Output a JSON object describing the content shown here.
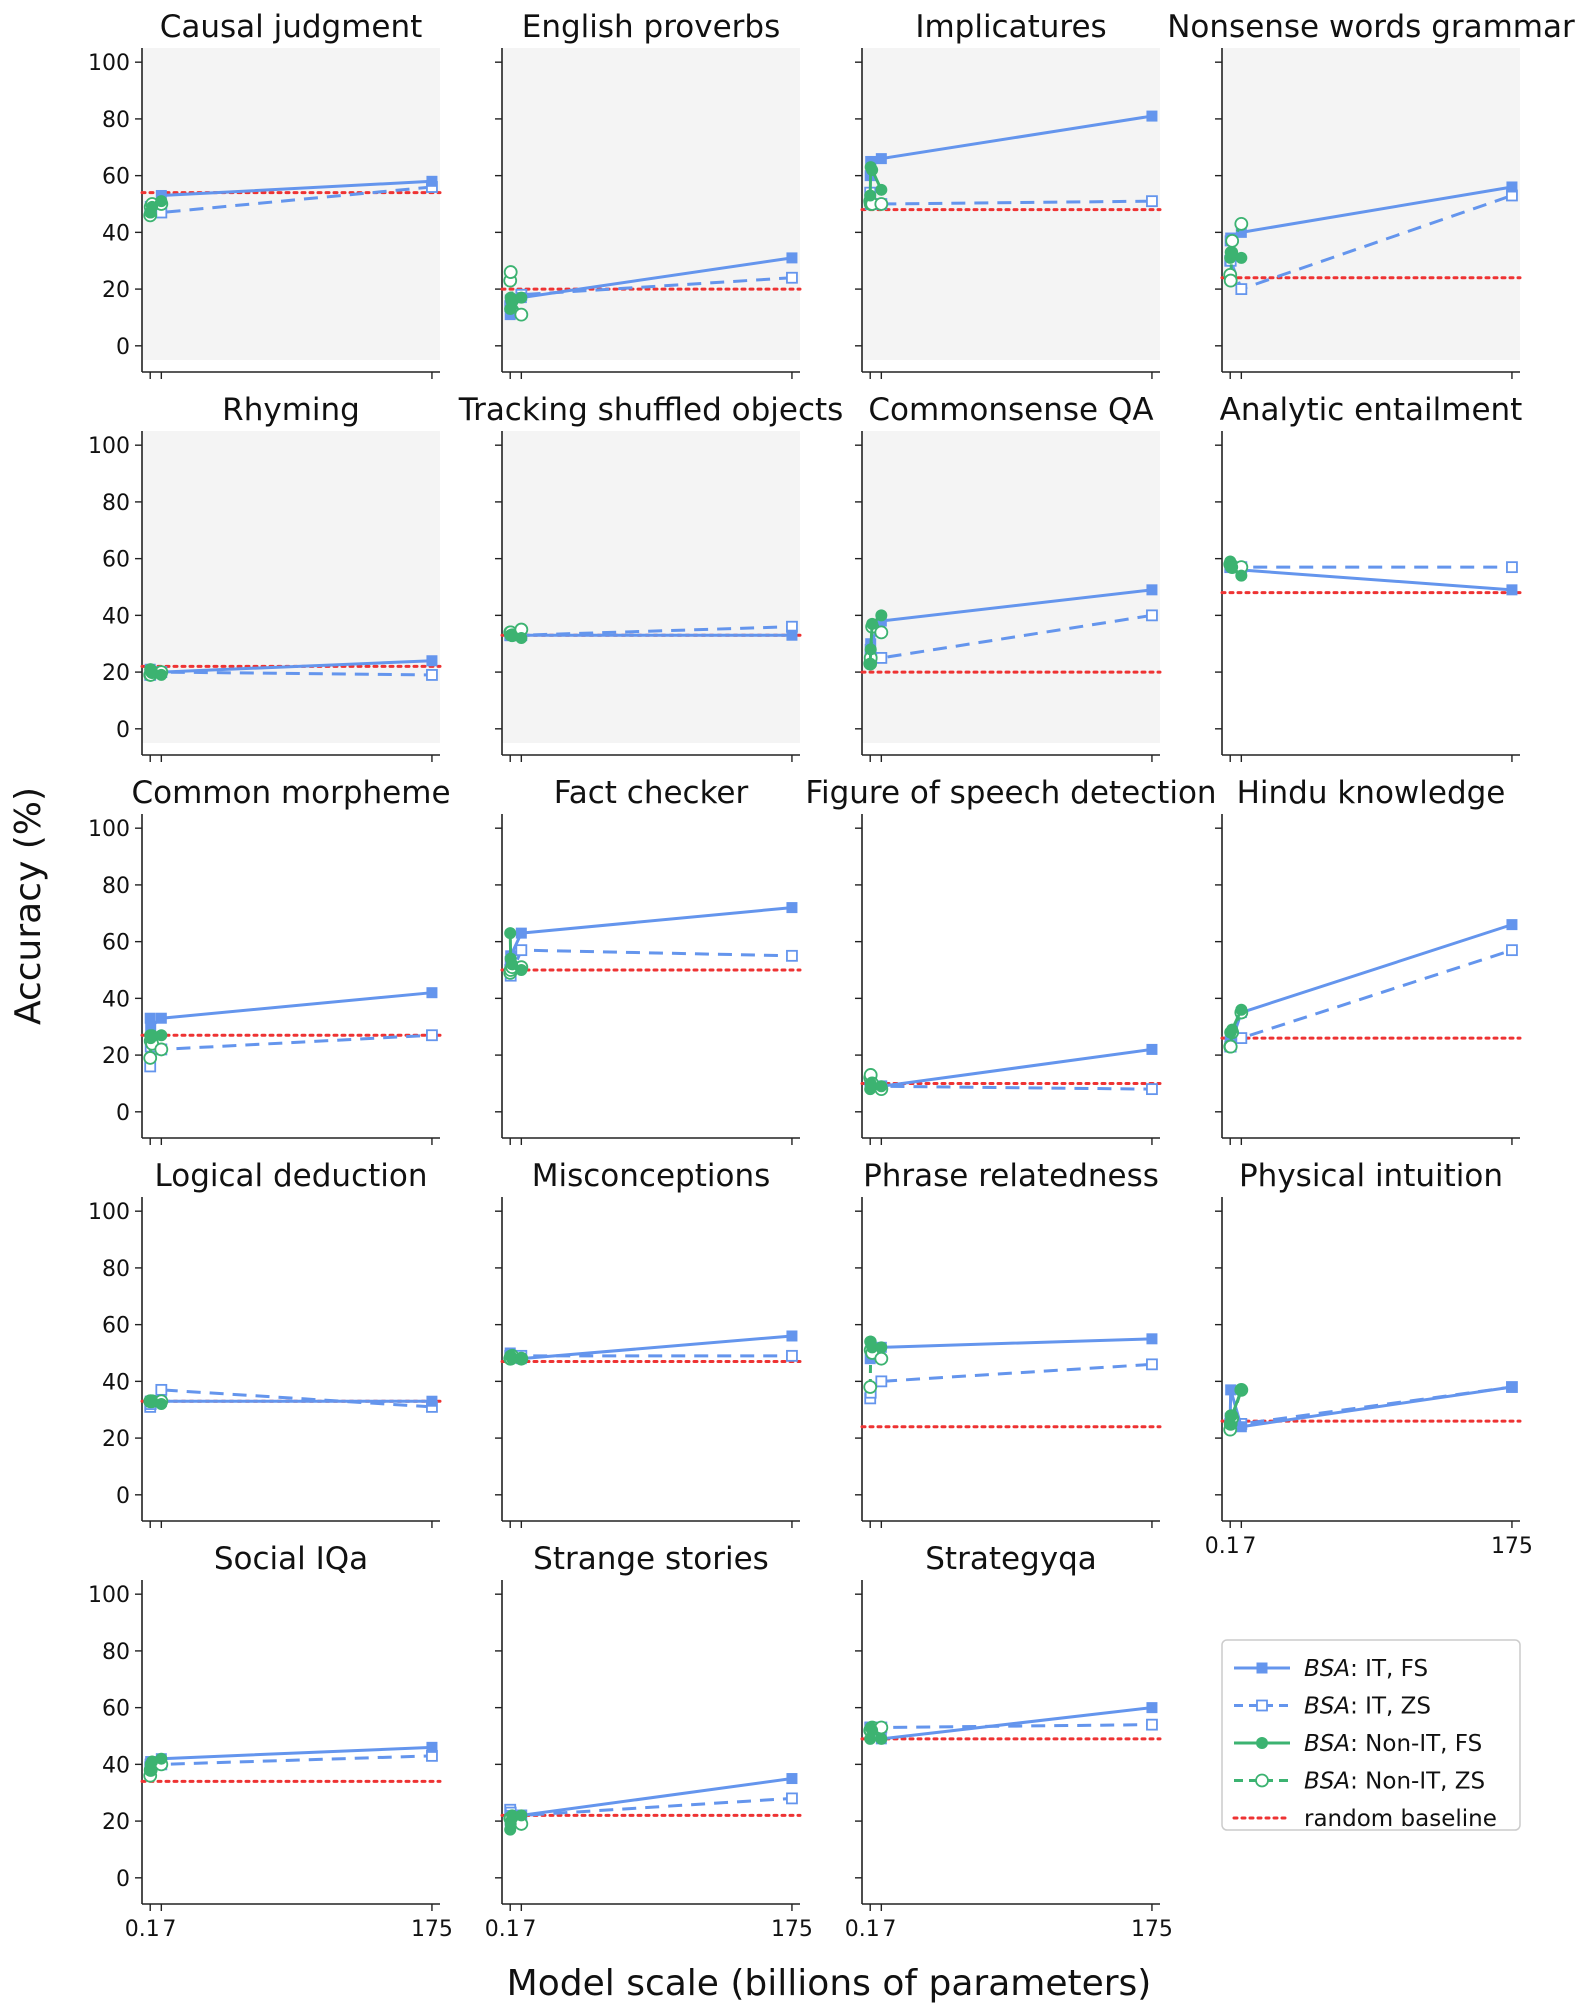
{
  "chart_data": {
    "type": "line",
    "ylabel": "Accuracy (%)",
    "xlabel": "Model scale (billions of parameters)",
    "ylim": [
      -5,
      105
    ],
    "yticks": [
      0,
      20,
      40,
      60,
      80,
      100
    ],
    "xlim": [
      -5,
      180
    ],
    "xticks": [
      0.1,
      7,
      175
    ],
    "xtick_labels": [
      "0.1",
      "7",
      "175"
    ],
    "colors": {
      "blue": "#6495ED",
      "green": "#3CB371",
      "red": "#EE3333",
      "panel_shaded": "#F4F4F4"
    },
    "legend": [
      {
        "italic": "BSA",
        "rest": ": IT, FS",
        "style": "solid",
        "marker": "square-filled",
        "color": "#6495ED"
      },
      {
        "italic": "BSA",
        "rest": ": IT, ZS",
        "style": "dashed",
        "marker": "square-open",
        "color": "#6495ED"
      },
      {
        "italic": "BSA",
        "rest": ": Non-IT, FS",
        "style": "solid",
        "marker": "circle-filled",
        "color": "#3CB371"
      },
      {
        "italic": "BSA",
        "rest": ": Non-IT, ZS",
        "style": "dashed",
        "marker": "circle-open",
        "color": "#3CB371"
      },
      {
        "italic": "",
        "rest": "random baseline",
        "style": "dotted",
        "marker": "none",
        "color": "#EE3333"
      }
    ],
    "panels": [
      {
        "title": "Causal judgment",
        "shaded": true,
        "baseline": 54,
        "it_fs": {
          "x": [
            0.1,
            0.4,
            7,
            175
          ],
          "y": [
            47,
            48,
            53,
            58
          ]
        },
        "it_zs": {
          "x": [
            0.1,
            0.4,
            7,
            175
          ],
          "y": [
            47,
            49,
            47,
            56
          ]
        },
        "nonit_fs": {
          "x": [
            0.1,
            0.4,
            1.3,
            7
          ],
          "y": [
            47,
            47,
            49,
            51
          ]
        },
        "nonit_zs": {
          "x": [
            0.1,
            0.4,
            1.3,
            7
          ],
          "y": [
            46,
            49,
            50,
            50
          ]
        }
      },
      {
        "title": "English proverbs",
        "shaded": true,
        "baseline": 20,
        "it_fs": {
          "x": [
            0.1,
            0.4,
            7,
            175
          ],
          "y": [
            11,
            15,
            17,
            31
          ]
        },
        "it_zs": {
          "x": [
            0.1,
            0.4,
            7,
            175
          ],
          "y": [
            14,
            16,
            18,
            24
          ]
        },
        "nonit_fs": {
          "x": [
            0.1,
            0.4,
            1.3,
            7
          ],
          "y": [
            13,
            17,
            16,
            17
          ]
        },
        "nonit_zs": {
          "x": [
            0.1,
            0.4,
            1.3,
            7
          ],
          "y": [
            23,
            26,
            16,
            11
          ]
        }
      },
      {
        "title": "Implicatures",
        "shaded": true,
        "baseline": 48,
        "it_fs": {
          "x": [
            0.1,
            0.4,
            7,
            175
          ],
          "y": [
            60,
            65,
            66,
            81
          ]
        },
        "it_zs": {
          "x": [
            0.1,
            0.4,
            7,
            175
          ],
          "y": [
            54,
            50,
            50,
            51
          ]
        },
        "nonit_fs": {
          "x": [
            0.1,
            0.4,
            1.3,
            7
          ],
          "y": [
            53,
            63,
            62,
            55
          ]
        },
        "nonit_zs": {
          "x": [
            0.1,
            0.4,
            1.3,
            7
          ],
          "y": [
            51,
            50,
            50,
            50
          ]
        }
      },
      {
        "title": "Nonsense words grammar",
        "shaded": true,
        "baseline": 24,
        "it_fs": {
          "x": [
            0.1,
            0.4,
            7,
            175
          ],
          "y": [
            37,
            38,
            40,
            56
          ]
        },
        "it_zs": {
          "x": [
            0.1,
            0.4,
            7,
            175
          ],
          "y": [
            30,
            30,
            20,
            53
          ]
        },
        "nonit_fs": {
          "x": [
            0.1,
            0.4,
            1.3,
            7
          ],
          "y": [
            31,
            33,
            33,
            31
          ]
        },
        "nonit_zs": {
          "x": [
            0.1,
            0.4,
            1.3,
            7
          ],
          "y": [
            25,
            23,
            37,
            43
          ]
        }
      },
      {
        "title": "Rhyming",
        "shaded": true,
        "baseline": 22,
        "it_fs": {
          "x": [
            0.1,
            0.4,
            7,
            175
          ],
          "y": [
            21,
            20,
            20,
            24
          ]
        },
        "it_zs": {
          "x": [
            0.1,
            0.4,
            7,
            175
          ],
          "y": [
            19,
            20,
            20,
            19
          ]
        },
        "nonit_fs": {
          "x": [
            0.1,
            0.4,
            1.3,
            7
          ],
          "y": [
            21,
            21,
            20,
            19
          ]
        },
        "nonit_zs": {
          "x": [
            0.1,
            0.4,
            1.3,
            7
          ],
          "y": [
            19,
            19,
            20,
            20
          ]
        }
      },
      {
        "title": "Tracking shuffled objects",
        "shaded": true,
        "baseline": 33,
        "it_fs": {
          "x": [
            0.1,
            0.4,
            7,
            175
          ],
          "y": [
            33,
            33,
            33,
            33
          ]
        },
        "it_zs": {
          "x": [
            0.1,
            0.4,
            7,
            175
          ],
          "y": [
            33,
            33,
            33,
            36
          ]
        },
        "nonit_fs": {
          "x": [
            0.1,
            0.4,
            1.3,
            7
          ],
          "y": [
            33,
            33,
            33,
            32
          ]
        },
        "nonit_zs": {
          "x": [
            0.1,
            0.4,
            1.3,
            7
          ],
          "y": [
            34,
            34,
            33,
            35
          ]
        }
      },
      {
        "title": "Commonsense QA",
        "shaded": true,
        "baseline": 20,
        "it_fs": {
          "x": [
            0.1,
            0.4,
            7,
            175
          ],
          "y": [
            28,
            30,
            38,
            49
          ]
        },
        "it_zs": {
          "x": [
            0.1,
            0.4,
            7,
            175
          ],
          "y": [
            24,
            26,
            25,
            40
          ]
        },
        "nonit_fs": {
          "x": [
            0.1,
            0.4,
            1.3,
            7
          ],
          "y": [
            23,
            28,
            37,
            40
          ]
        },
        "nonit_zs": {
          "x": [
            0.1,
            0.4,
            1.3,
            7
          ],
          "y": [
            23,
            25,
            36,
            34
          ]
        }
      },
      {
        "title": "Analytic entailment",
        "shaded": false,
        "baseline": 48,
        "it_fs": {
          "x": [
            0.1,
            0.4,
            7,
            175
          ],
          "y": [
            57,
            57,
            56,
            49
          ]
        },
        "it_zs": {
          "x": [
            0.1,
            0.4,
            7,
            175
          ],
          "y": [
            57,
            57,
            57,
            57
          ]
        },
        "nonit_fs": {
          "x": [
            0.1,
            0.4,
            1.3,
            7
          ],
          "y": [
            59,
            57,
            57,
            54
          ]
        },
        "nonit_zs": {
          "x": [
            0.1,
            0.4,
            1.3,
            7
          ],
          "y": [
            58,
            58,
            57,
            57
          ]
        }
      },
      {
        "title": "Common morpheme",
        "shaded": false,
        "baseline": 27,
        "it_fs": {
          "x": [
            0.1,
            0.4,
            7,
            175
          ],
          "y": [
            33,
            30,
            33,
            42
          ]
        },
        "it_zs": {
          "x": [
            0.1,
            0.4,
            7,
            175
          ],
          "y": [
            16,
            23,
            22,
            27
          ]
        },
        "nonit_fs": {
          "x": [
            0.1,
            0.4,
            1.3,
            7
          ],
          "y": [
            27,
            26,
            27,
            27
          ]
        },
        "nonit_zs": {
          "x": [
            0.1,
            0.4,
            1.3,
            7
          ],
          "y": [
            19,
            25,
            24,
            22
          ]
        }
      },
      {
        "title": "Fact checker",
        "shaded": false,
        "baseline": 50,
        "it_fs": {
          "x": [
            0.1,
            0.4,
            7,
            175
          ],
          "y": [
            53,
            55,
            63,
            72
          ]
        },
        "it_zs": {
          "x": [
            0.1,
            0.4,
            7,
            175
          ],
          "y": [
            50,
            48,
            57,
            55
          ]
        },
        "nonit_fs": {
          "x": [
            0.1,
            0.4,
            1.3,
            7
          ],
          "y": [
            63,
            54,
            52,
            50
          ]
        },
        "nonit_zs": {
          "x": [
            0.1,
            0.4,
            1.3,
            7
          ],
          "y": [
            49,
            50,
            51,
            51
          ]
        }
      },
      {
        "title": "Figure of speech detection",
        "shaded": false,
        "baseline": 10,
        "it_fs": {
          "x": [
            0.1,
            0.4,
            7,
            175
          ],
          "y": [
            10,
            9,
            9,
            22
          ]
        },
        "it_zs": {
          "x": [
            0.1,
            0.4,
            7,
            175
          ],
          "y": [
            11,
            10,
            9,
            8
          ]
        },
        "nonit_fs": {
          "x": [
            0.1,
            0.4,
            1.3,
            7
          ],
          "y": [
            8,
            10,
            9,
            9
          ]
        },
        "nonit_zs": {
          "x": [
            0.1,
            0.4,
            1.3,
            7
          ],
          "y": [
            12,
            13,
            10,
            8
          ]
        }
      },
      {
        "title": "Hindu knowledge",
        "shaded": false,
        "baseline": 26,
        "it_fs": {
          "x": [
            0.1,
            0.4,
            7,
            175
          ],
          "y": [
            25,
            24,
            35,
            66
          ]
        },
        "it_zs": {
          "x": [
            0.1,
            0.4,
            7,
            175
          ],
          "y": [
            23,
            23,
            26,
            57
          ]
        },
        "nonit_fs": {
          "x": [
            0.1,
            0.4,
            1.3,
            7
          ],
          "y": [
            28,
            28,
            29,
            36
          ]
        },
        "nonit_zs": {
          "x": [
            0.1,
            0.4,
            1.3,
            7
          ],
          "y": [
            23,
            23,
            28,
            35
          ]
        }
      },
      {
        "title": "Logical deduction",
        "shaded": false,
        "baseline": 33,
        "it_fs": {
          "x": [
            0.1,
            0.4,
            7,
            175
          ],
          "y": [
            33,
            33,
            33,
            33
          ]
        },
        "it_zs": {
          "x": [
            0.1,
            0.4,
            7,
            175
          ],
          "y": [
            31,
            32,
            37,
            31
          ]
        },
        "nonit_fs": {
          "x": [
            0.1,
            0.4,
            1.3,
            7
          ],
          "y": [
            33,
            33,
            33,
            32
          ]
        },
        "nonit_zs": {
          "x": [
            0.1,
            0.4,
            1.3,
            7
          ],
          "y": [
            33,
            33,
            33,
            33
          ]
        }
      },
      {
        "title": "Misconceptions",
        "shaded": false,
        "baseline": 47,
        "it_fs": {
          "x": [
            0.1,
            0.4,
            7,
            175
          ],
          "y": [
            50,
            49,
            48,
            56
          ]
        },
        "it_zs": {
          "x": [
            0.1,
            0.4,
            7,
            175
          ],
          "y": [
            49,
            49,
            49,
            49
          ]
        },
        "nonit_fs": {
          "x": [
            0.1,
            0.4,
            1.3,
            7
          ],
          "y": [
            49,
            49,
            48,
            48
          ]
        },
        "nonit_zs": {
          "x": [
            0.1,
            0.4,
            1.3,
            7
          ],
          "y": [
            48,
            48,
            49,
            48
          ]
        }
      },
      {
        "title": "Phrase relatedness",
        "shaded": false,
        "baseline": 24,
        "it_fs": {
          "x": [
            0.1,
            0.4,
            7,
            175
          ],
          "y": [
            48,
            51,
            52,
            55
          ]
        },
        "it_zs": {
          "x": [
            0.1,
            0.4,
            7,
            175
          ],
          "y": [
            34,
            36,
            40,
            46
          ]
        },
        "nonit_fs": {
          "x": [
            0.1,
            0.4,
            1.3,
            7
          ],
          "y": [
            54,
            54,
            52,
            52
          ]
        },
        "nonit_zs": {
          "x": [
            0.1,
            0.4,
            1.3,
            7
          ],
          "y": [
            38,
            51,
            50,
            48
          ]
        }
      },
      {
        "title": "Physical intuition",
        "shaded": false,
        "baseline": 26,
        "it_fs": {
          "x": [
            0.1,
            0.4,
            7,
            175
          ],
          "y": [
            27,
            37,
            24,
            38
          ]
        },
        "it_zs": {
          "x": [
            0.1,
            0.4,
            7,
            175
          ],
          "y": [
            25,
            26,
            25,
            38
          ]
        },
        "nonit_fs": {
          "x": [
            0.1,
            0.4,
            1.3,
            7
          ],
          "y": [
            25,
            28,
            28,
            37
          ]
        },
        "nonit_zs": {
          "x": [
            0.1,
            0.4,
            1.3,
            7
          ],
          "y": [
            23,
            25,
            27,
            37
          ]
        }
      },
      {
        "title": "Social IQa",
        "shaded": false,
        "baseline": 34,
        "it_fs": {
          "x": [
            0.1,
            0.4,
            7,
            175
          ],
          "y": [
            40,
            41,
            42,
            46
          ]
        },
        "it_zs": {
          "x": [
            0.1,
            0.4,
            7,
            175
          ],
          "y": [
            39,
            40,
            40,
            43
          ]
        },
        "nonit_fs": {
          "x": [
            0.1,
            0.4,
            1.3,
            7
          ],
          "y": [
            38,
            40,
            41,
            42
          ]
        },
        "nonit_zs": {
          "x": [
            0.1,
            0.4,
            1.3,
            7
          ],
          "y": [
            36,
            38,
            40,
            40
          ]
        }
      },
      {
        "title": "Strange stories",
        "shaded": false,
        "baseline": 22,
        "it_fs": {
          "x": [
            0.1,
            0.4,
            7,
            175
          ],
          "y": [
            20,
            22,
            22,
            35
          ]
        },
        "it_zs": {
          "x": [
            0.1,
            0.4,
            7,
            175
          ],
          "y": [
            24,
            23,
            22,
            28
          ]
        },
        "nonit_fs": {
          "x": [
            0.1,
            0.4,
            1.3,
            7
          ],
          "y": [
            17,
            19,
            22,
            22
          ]
        },
        "nonit_zs": {
          "x": [
            0.1,
            0.4,
            1.3,
            7
          ],
          "y": [
            21,
            21,
            20,
            19
          ]
        }
      },
      {
        "title": "Strategyqa",
        "shaded": false,
        "baseline": 49,
        "it_fs": {
          "x": [
            0.1,
            0.4,
            7,
            175
          ],
          "y": [
            53,
            53,
            49,
            60
          ]
        },
        "it_zs": {
          "x": [
            0.1,
            0.4,
            7,
            175
          ],
          "y": [
            53,
            53,
            53,
            54
          ]
        },
        "nonit_fs": {
          "x": [
            0.1,
            0.4,
            1.3,
            7
          ],
          "y": [
            49,
            53,
            52,
            49
          ]
        },
        "nonit_zs": {
          "x": [
            0.1,
            0.4,
            1.3,
            7
          ],
          "y": [
            52,
            52,
            53,
            53
          ]
        }
      }
    ]
  }
}
